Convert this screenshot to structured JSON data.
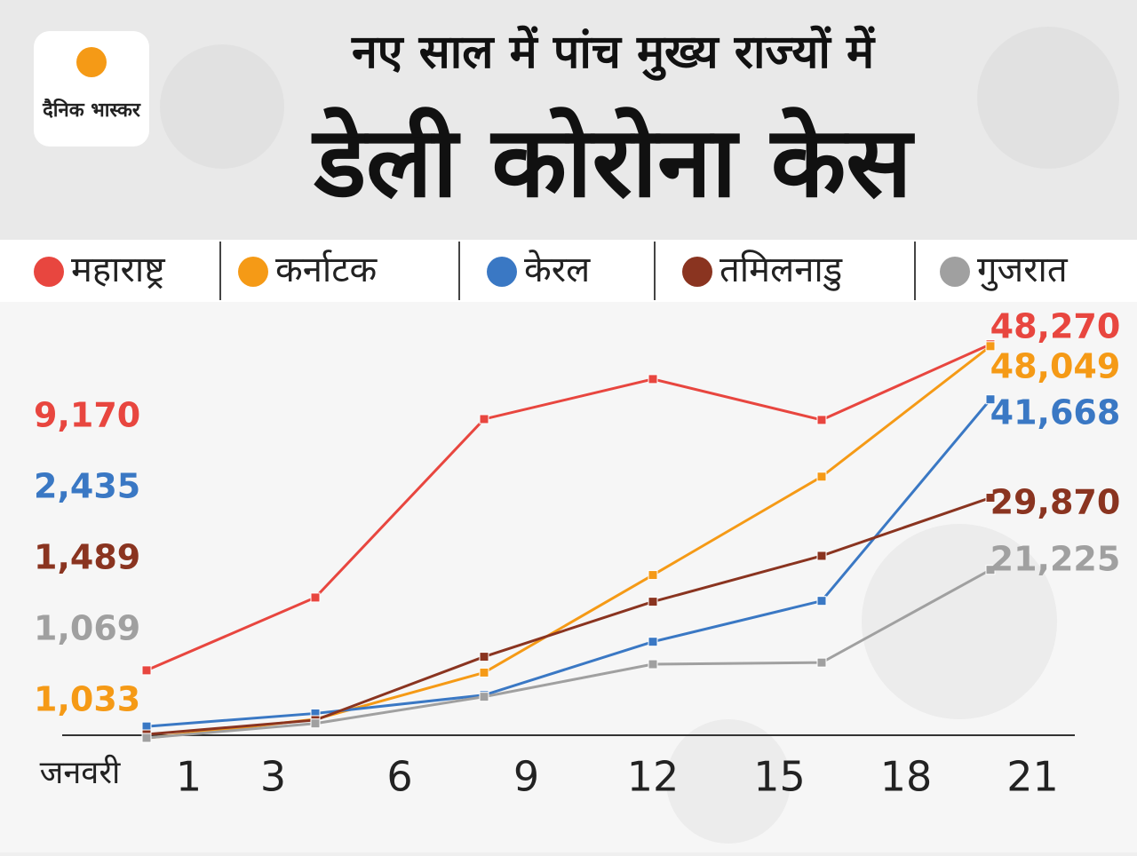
{
  "logo": "दैनिक भास्कर",
  "chart_data": {
    "type": "line",
    "title": "नए साल में पांच मुख्य राज्यों में",
    "subtitle": "डेली कोरोना केस",
    "xlabel": "जनवरी",
    "x": [
      0,
      4,
      8,
      12,
      16,
      20
    ],
    "xlim": [
      -2,
      22
    ],
    "xticks": [
      1,
      3,
      6,
      9,
      12,
      15,
      18,
      21
    ],
    "ylim": [
      0,
      50000
    ],
    "series": [
      {
        "name": "महाराष्ट्र",
        "color": "#e8463f",
        "values": [
          9170,
          17900,
          39300,
          44100,
          39200,
          48270
        ],
        "value_labels": [
          "9,170",
          null,
          null,
          null,
          null,
          "48,270"
        ]
      },
      {
        "name": "कर्नाटक",
        "color": "#f59a16",
        "values": [
          1033,
          3300,
          8900,
          20600,
          32400,
          48049
        ],
        "value_labels": [
          "1,033",
          null,
          null,
          null,
          null,
          "48,049"
        ]
      },
      {
        "name": "केरल",
        "color": "#3a78c4",
        "values": [
          2435,
          4000,
          6200,
          12600,
          17500,
          41668
        ],
        "value_labels": [
          "2,435",
          null,
          null,
          null,
          null,
          "41,668"
        ]
      },
      {
        "name": "तमिलनाडु",
        "color": "#8a3420",
        "values": [
          1489,
          3200,
          10800,
          17400,
          22900,
          29870
        ],
        "value_labels": [
          "1,489",
          null,
          null,
          null,
          null,
          "29,870"
        ]
      },
      {
        "name": "गुजरात",
        "color": "#a0a0a0",
        "values": [
          1069,
          2800,
          6000,
          9900,
          10100,
          21225
        ],
        "value_labels": [
          "1,069",
          null,
          null,
          null,
          null,
          "21,225"
        ]
      }
    ]
  }
}
